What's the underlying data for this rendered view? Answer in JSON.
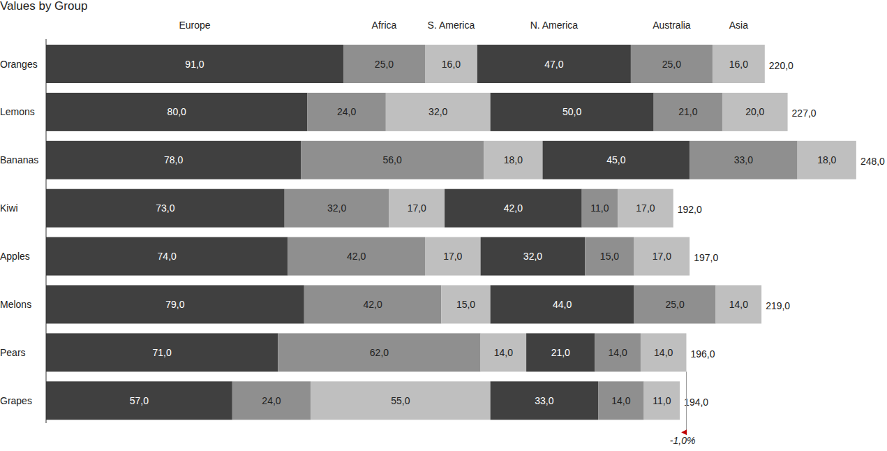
{
  "chart_data": {
    "type": "bar",
    "title": "Values by Group",
    "orientation": "horizontal",
    "stacked": true,
    "data_labels": true,
    "tick_labels": "y",
    "grid": false,
    "categories": [
      "Oranges",
      "Lemons",
      "Bananas",
      "Kiwi",
      "Apples",
      "Melons",
      "Pears",
      "Grapes"
    ],
    "xlim": [
      0,
      248
    ],
    "xticks": [],
    "series": [
      {
        "name": "Europe",
        "color": "#404040",
        "values": [
          91,
          80,
          78,
          73,
          74,
          79,
          71,
          57
        ],
        "value_labels": [
          "91,0",
          "80,0",
          "78,0",
          "73,0",
          "74,0",
          "79,0",
          "71,0",
          "57,0"
        ]
      },
      {
        "name": "Africa",
        "color": "#8f8f8f",
        "values": [
          25,
          24,
          56,
          32,
          42,
          42,
          62,
          24
        ],
        "value_labels": [
          "25,0",
          "24,0",
          "56,0",
          "32,0",
          "42,0",
          "42,0",
          "62,0",
          "24,0"
        ]
      },
      {
        "name": "S. America",
        "color": "#bfbfbf",
        "values": [
          16,
          32,
          18,
          17,
          17,
          15,
          14,
          55
        ],
        "value_labels": [
          "16,0",
          "32,0",
          "18,0",
          "17,0",
          "17,0",
          "15,0",
          "14,0",
          "55,0"
        ]
      },
      {
        "name": "N. America",
        "color": "#404040",
        "values": [
          47,
          50,
          45,
          42,
          32,
          44,
          21,
          33
        ],
        "value_labels": [
          "47,0",
          "50,0",
          "45,0",
          "42,0",
          "32,0",
          "44,0",
          "21,0",
          "33,0"
        ]
      },
      {
        "name": "Australia",
        "color": "#8f8f8f",
        "values": [
          25,
          21,
          33,
          11,
          15,
          25,
          14,
          14
        ],
        "value_labels": [
          "25,0",
          "21,0",
          "33,0",
          "11,0",
          "15,0",
          "25,0",
          "14,0",
          "14,0"
        ]
      },
      {
        "name": "Asia",
        "color": "#bfbfbf",
        "values": [
          16,
          20,
          18,
          17,
          17,
          14,
          14,
          11
        ],
        "value_labels": [
          "16,0",
          "20,0",
          "18,0",
          "17,0",
          "17,0",
          "14,0",
          "14,0",
          "11,0"
        ]
      }
    ],
    "totals": [
      220,
      227,
      248,
      192,
      197,
      219,
      196,
      194
    ],
    "total_labels": [
      "220,0",
      "227,0",
      "248,0",
      "192,0",
      "197,0",
      "219,0",
      "196,0",
      "194,0"
    ],
    "annotations": [
      {
        "text": "-1,0%",
        "category": "Grapes",
        "color": "#c00000"
      }
    ]
  }
}
